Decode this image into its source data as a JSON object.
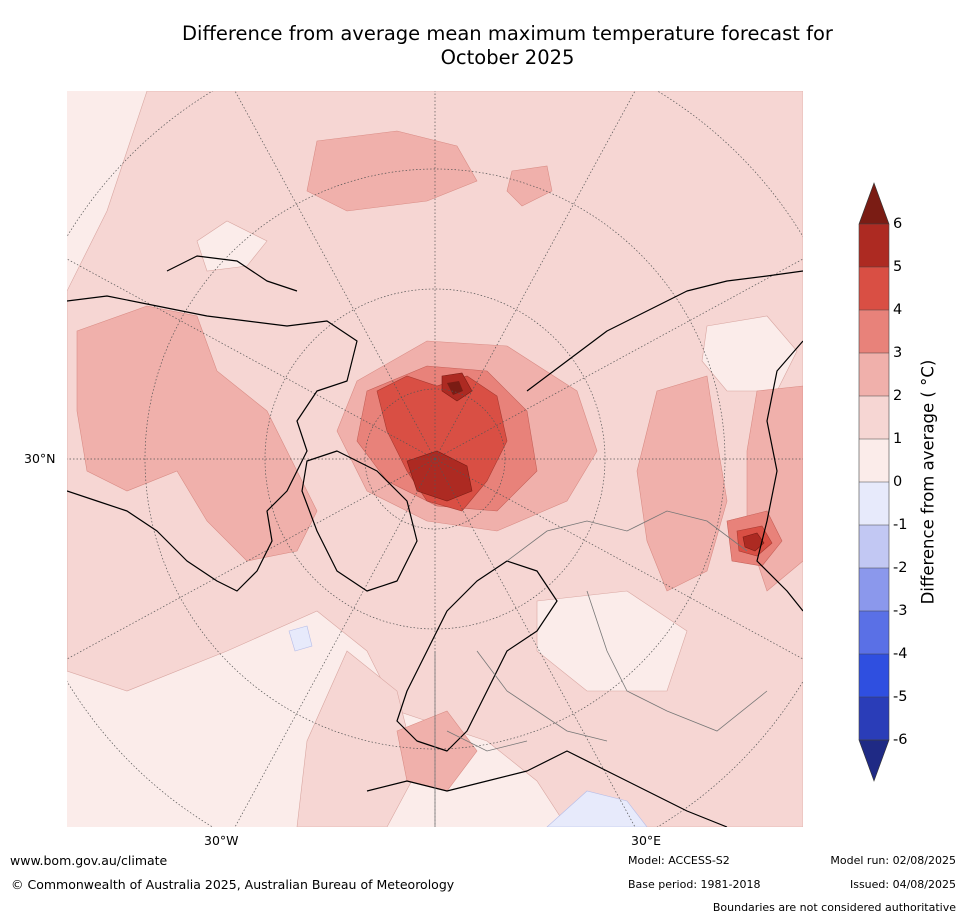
{
  "title": {
    "line1": "Difference from average mean maximum temperature forecast for",
    "line2": "October 2025"
  },
  "map": {
    "projection": "north-polar-stereographic",
    "lat_labels": [
      "30°N"
    ],
    "lon_labels": [
      "30°W",
      "30°E"
    ],
    "features": [
      "Arctic warm anomaly 5-6°C north of Scandinavia",
      "Warm anomaly 5-6°C over north-east China",
      "Weak cool anomaly west of Europe"
    ]
  },
  "colorbar": {
    "label": "Difference from average ( °C)",
    "ticks": [
      "6",
      "5",
      "4",
      "3",
      "2",
      "1",
      "0",
      "-1",
      "-2",
      "-3",
      "-4",
      "-5",
      "-6"
    ],
    "colors": {
      "above6": "#7a1c14",
      "5to6": "#ad2a22",
      "4to5": "#d94f44",
      "3to4": "#e8827a",
      "2to3": "#f0b0ab",
      "1to2": "#f6d6d3",
      "0to1": "#fbecea",
      "m1to0": "#e7eafb",
      "m2tom1": "#c2c8f3",
      "m3tom2": "#8b98ec",
      "m4tom3": "#5a70e6",
      "m5tom4": "#2f4fe0",
      "m6tom5": "#2a3db8",
      "below_m6": "#1f2a85"
    }
  },
  "footer": {
    "url": "www.bom.gov.au/climate",
    "copyright": "© Commonwealth of Australia 2025, Australian Bureau of Meteorology",
    "model": "Model: ACCESS-S2",
    "base_period": "Base period: 1981-2018",
    "model_run": "Model run: 02/08/2025",
    "issued": "Issued: 04/08/2025",
    "boundaries": "Boundaries are not considered authoritative"
  }
}
